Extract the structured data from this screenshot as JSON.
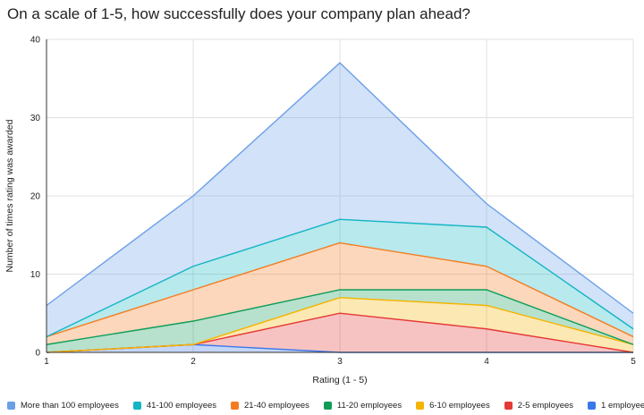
{
  "chart_data": {
    "type": "area",
    "stacked": true,
    "title": "On a scale of 1-5, how successfully does your company plan ahead?",
    "xlabel": "Rating (1 - 5)",
    "ylabel": "Number of times rating was awarded",
    "x": [
      1,
      2,
      3,
      4,
      5
    ],
    "x_tick_labels": [
      "1",
      "2",
      "3",
      "4",
      "5"
    ],
    "ylim": [
      0,
      40
    ],
    "y_ticks": [
      0,
      10,
      20,
      30,
      40
    ],
    "legend_position": "bottom",
    "grid": true,
    "series": [
      {
        "name": "1 employee",
        "color": "#3b78e7",
        "values": [
          0,
          1,
          0,
          0,
          0
        ]
      },
      {
        "name": "2-5 employees",
        "color": "#e53935",
        "values": [
          0,
          0,
          5,
          3,
          0
        ]
      },
      {
        "name": "6-10 employees",
        "color": "#f4b400",
        "values": [
          0,
          0,
          2,
          3,
          1
        ]
      },
      {
        "name": "11-20 employees",
        "color": "#0f9d58",
        "values": [
          1,
          3,
          1,
          2,
          0
        ]
      },
      {
        "name": "21-40 employees",
        "color": "#f47c20",
        "values": [
          1,
          4,
          6,
          3,
          1
        ]
      },
      {
        "name": "41-100 employees",
        "color": "#12b5c4",
        "values": [
          0,
          3,
          3,
          5,
          1
        ]
      },
      {
        "name": "More than 100 employees",
        "color": "#6b9fe8",
        "values": [
          4,
          9,
          20,
          3,
          2
        ]
      }
    ],
    "legend_order": [
      "More than 100 employees",
      "41-100 employees",
      "21-40 employees",
      "11-20 employees",
      "6-10 employees",
      "2-5 employees",
      "1 employee"
    ]
  }
}
